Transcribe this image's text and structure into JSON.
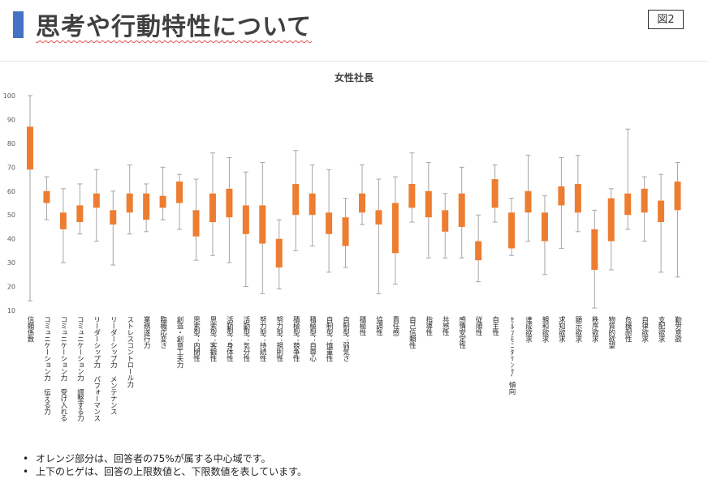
{
  "header": {
    "title": "思考や行動特性について",
    "figure_label": "図2",
    "accent_color": "#4472C4"
  },
  "chart_data": {
    "type": "boxplot",
    "title": "女性社長",
    "ylim": [
      10,
      100
    ],
    "yticks": [
      10,
      20,
      30,
      40,
      50,
      60,
      70,
      80,
      90,
      100
    ],
    "box_color": "#ED7D31",
    "whisker_color": "#A6A6A6",
    "grid": false,
    "categories": [
      "信頼係数",
      "コミュニケーション力 伝える力",
      "コミュニケーション力 受け入れる力",
      "コミュニケーション力 調整する力",
      "リーダーシップ力 パフォーマンス",
      "リーダーシップ力 メンテナンス",
      "ストレスコントロール力",
      "業務遂行力",
      "臨機応変さ",
      "創造・創意工夫力",
      "思索型：内閉性",
      "思索型：客観性",
      "活動型：身体性",
      "活動型：気分性",
      "努力型：持続性",
      "努力型：規則性",
      "積極型：競争性",
      "積極型：自尊心",
      "自制型：慎重性",
      "自制型：弱気さ",
      "積極性",
      "協調性",
      "責任感",
      "自己信頼性",
      "指導性",
      "共感性",
      "感情安定性",
      "従順性",
      "自主性",
      "ｾﾙﾌﾓﾆﾀﾘﾝｸﾞ傾向",
      "達成欲求",
      "親和欲求",
      "求知欲求",
      "顕示欲求",
      "秩序欲求",
      "物質的欲望",
      "危機耐性",
      "自律欲求",
      "支配欲求",
      "勤労意欲"
    ],
    "boxes": [
      {
        "min": 14,
        "q1": 69,
        "q3": 87,
        "max": 100
      },
      {
        "min": 48,
        "q1": 55,
        "q3": 60,
        "max": 66
      },
      {
        "min": 30,
        "q1": 44,
        "q3": 51,
        "max": 61
      },
      {
        "min": 42,
        "q1": 47,
        "q3": 54,
        "max": 63
      },
      {
        "min": 39,
        "q1": 53,
        "q3": 59,
        "max": 69
      },
      {
        "min": 29,
        "q1": 46,
        "q3": 52,
        "max": 60
      },
      {
        "min": 42,
        "q1": 51,
        "q3": 59,
        "max": 71
      },
      {
        "min": 43,
        "q1": 48,
        "q3": 59,
        "max": 63
      },
      {
        "min": 48,
        "q1": 53,
        "q3": 58,
        "max": 70
      },
      {
        "min": 44,
        "q1": 55,
        "q3": 64,
        "max": 67
      },
      {
        "min": 31,
        "q1": 41,
        "q3": 52,
        "max": 65
      },
      {
        "min": 33,
        "q1": 47,
        "q3": 59,
        "max": 76
      },
      {
        "min": 30,
        "q1": 49,
        "q3": 61,
        "max": 74
      },
      {
        "min": 20,
        "q1": 42,
        "q3": 54,
        "max": 68
      },
      {
        "min": 17,
        "q1": 38,
        "q3": 54,
        "max": 72
      },
      {
        "min": 19,
        "q1": 28,
        "q3": 40,
        "max": 48
      },
      {
        "min": 35,
        "q1": 50,
        "q3": 63,
        "max": 77
      },
      {
        "min": 37,
        "q1": 50,
        "q3": 59,
        "max": 71
      },
      {
        "min": 26,
        "q1": 42,
        "q3": 51,
        "max": 69
      },
      {
        "min": 28,
        "q1": 37,
        "q3": 49,
        "max": 57
      },
      {
        "min": 46,
        "q1": 51,
        "q3": 59,
        "max": 71
      },
      {
        "min": 17,
        "q1": 46,
        "q3": 52,
        "max": 65
      },
      {
        "min": 21,
        "q1": 34,
        "q3": 55,
        "max": 66
      },
      {
        "min": 47,
        "q1": 53,
        "q3": 63,
        "max": 76
      },
      {
        "min": 32,
        "q1": 49,
        "q3": 60,
        "max": 72
      },
      {
        "min": 32,
        "q1": 43,
        "q3": 52,
        "max": 59
      },
      {
        "min": 32,
        "q1": 45,
        "q3": 59,
        "max": 70
      },
      {
        "min": 22,
        "q1": 31,
        "q3": 39,
        "max": 50
      },
      {
        "min": 47,
        "q1": 53,
        "q3": 65,
        "max": 71
      },
      {
        "min": 33,
        "q1": 36,
        "q3": 51,
        "max": 57
      },
      {
        "min": 39,
        "q1": 51,
        "q3": 60,
        "max": 75
      },
      {
        "min": 25,
        "q1": 39,
        "q3": 51,
        "max": 58
      },
      {
        "min": 36,
        "q1": 54,
        "q3": 62,
        "max": 74
      },
      {
        "min": 43,
        "q1": 51,
        "q3": 63,
        "max": 75
      },
      {
        "min": 11,
        "q1": 27,
        "q3": 44,
        "max": 52
      },
      {
        "min": 27,
        "q1": 39,
        "q3": 57,
        "max": 61
      },
      {
        "min": 44,
        "q1": 50,
        "q3": 59,
        "max": 86
      },
      {
        "min": 39,
        "q1": 51,
        "q3": 61,
        "max": 66
      },
      {
        "min": 26,
        "q1": 47,
        "q3": 56,
        "max": 67
      },
      {
        "min": 24,
        "q1": 52,
        "q3": 64,
        "max": 72
      }
    ]
  },
  "notes": [
    "オレンジ部分は、回答者の75%が属する中心域です。",
    "上下のヒゲは、回答の上限数値と、下限数値を表しています。"
  ]
}
